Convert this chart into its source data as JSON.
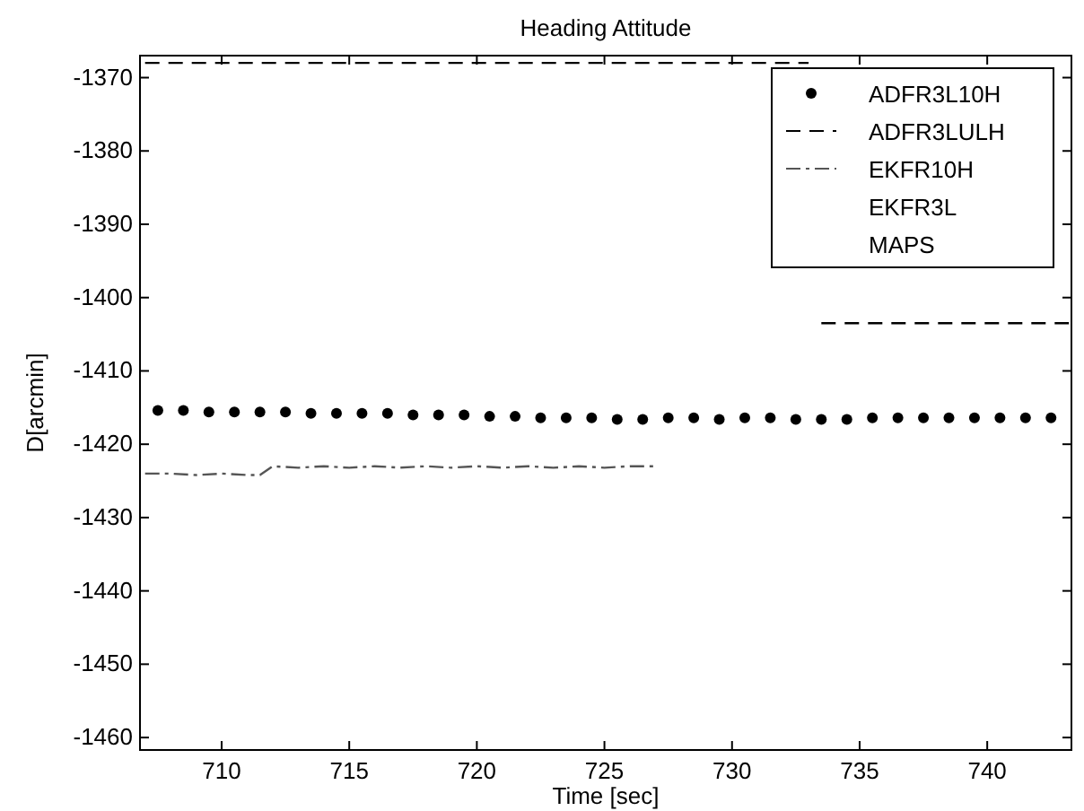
{
  "chart_data": {
    "type": "line",
    "title": "Heading Attitude",
    "xlabel": "Time [sec]",
    "ylabel": "D[arcmin]",
    "xlim": [
      706.8,
      743.3
    ],
    "xticks": [
      710,
      715,
      720,
      725,
      730,
      735,
      740
    ],
    "ylim": [
      -1461.7,
      -1367
    ],
    "yticks": [
      -1460,
      -1450,
      -1440,
      -1430,
      -1420,
      -1410,
      -1400,
      -1390,
      -1380,
      -1370
    ],
    "grid": false,
    "legend": "top right",
    "series": [
      {
        "name": "ADFR3L10H",
        "type": "scatter",
        "marker": "circle",
        "color": "#000000",
        "x": [
          707.5,
          708.5,
          709.5,
          710.5,
          711.5,
          712.5,
          713.5,
          714.5,
          715.5,
          716.5,
          717.5,
          718.5,
          719.5,
          720.5,
          721.5,
          722.5,
          723.5,
          724.5,
          725.5,
          726.5,
          727.5,
          728.5,
          729.5,
          730.5,
          731.5,
          732.5,
          733.5,
          734.5,
          735.5,
          736.5,
          737.5,
          738.5,
          739.5,
          740.5,
          741.5,
          742.5
        ],
        "values": [
          -1415.4,
          -1415.4,
          -1415.6,
          -1415.6,
          -1415.6,
          -1415.6,
          -1415.8,
          -1415.8,
          -1415.8,
          -1415.8,
          -1416,
          -1416,
          -1416,
          -1416.2,
          -1416.2,
          -1416.4,
          -1416.4,
          -1416.4,
          -1416.6,
          -1416.6,
          -1416.4,
          -1416.4,
          -1416.6,
          -1416.4,
          -1416.4,
          -1416.6,
          -1416.6,
          -1416.6,
          -1416.4,
          -1416.4,
          -1416.4,
          -1416.4,
          -1416.4,
          -1416.4,
          -1416.4,
          -1416.4
        ]
      },
      {
        "name": "ADFR3LULH",
        "line_style": "dashed",
        "marker": "none",
        "color": "#000000",
        "x": [
          707,
          709,
          711,
          713,
          715,
          717,
          719,
          721,
          723,
          725,
          727,
          729,
          731,
          733,
          733.2,
          733.5,
          743.2
        ],
        "values": [
          -1368,
          -1368,
          -1368,
          -1368,
          -1368,
          -1368,
          -1368,
          -1368,
          -1368,
          -1368,
          -1368,
          -1368,
          -1368,
          -1368,
          null,
          -1403.5,
          -1403.5
        ]
      },
      {
        "name": "EKFR10H",
        "line_style": "dashdot",
        "marker": "none",
        "color": "#555555",
        "x": [
          707,
          708,
          709,
          710,
          711,
          711.5,
          712,
          713,
          714,
          715,
          716,
          717,
          718,
          719,
          720,
          721,
          722,
          723,
          724,
          725,
          726,
          727
        ],
        "values": [
          -1424,
          -1424,
          -1424.2,
          -1424,
          -1424.2,
          -1424.2,
          -1423,
          -1423.2,
          -1423,
          -1423.2,
          -1423,
          -1423.2,
          -1423,
          -1423.2,
          -1423,
          -1423.2,
          -1423,
          -1423.2,
          -1423,
          -1423.2,
          -1423,
          -1423
        ]
      },
      {
        "name": "EKFR3L",
        "line_style": "none",
        "marker": "none"
      },
      {
        "name": "MAPS",
        "line_style": "none",
        "marker": "none"
      }
    ]
  }
}
